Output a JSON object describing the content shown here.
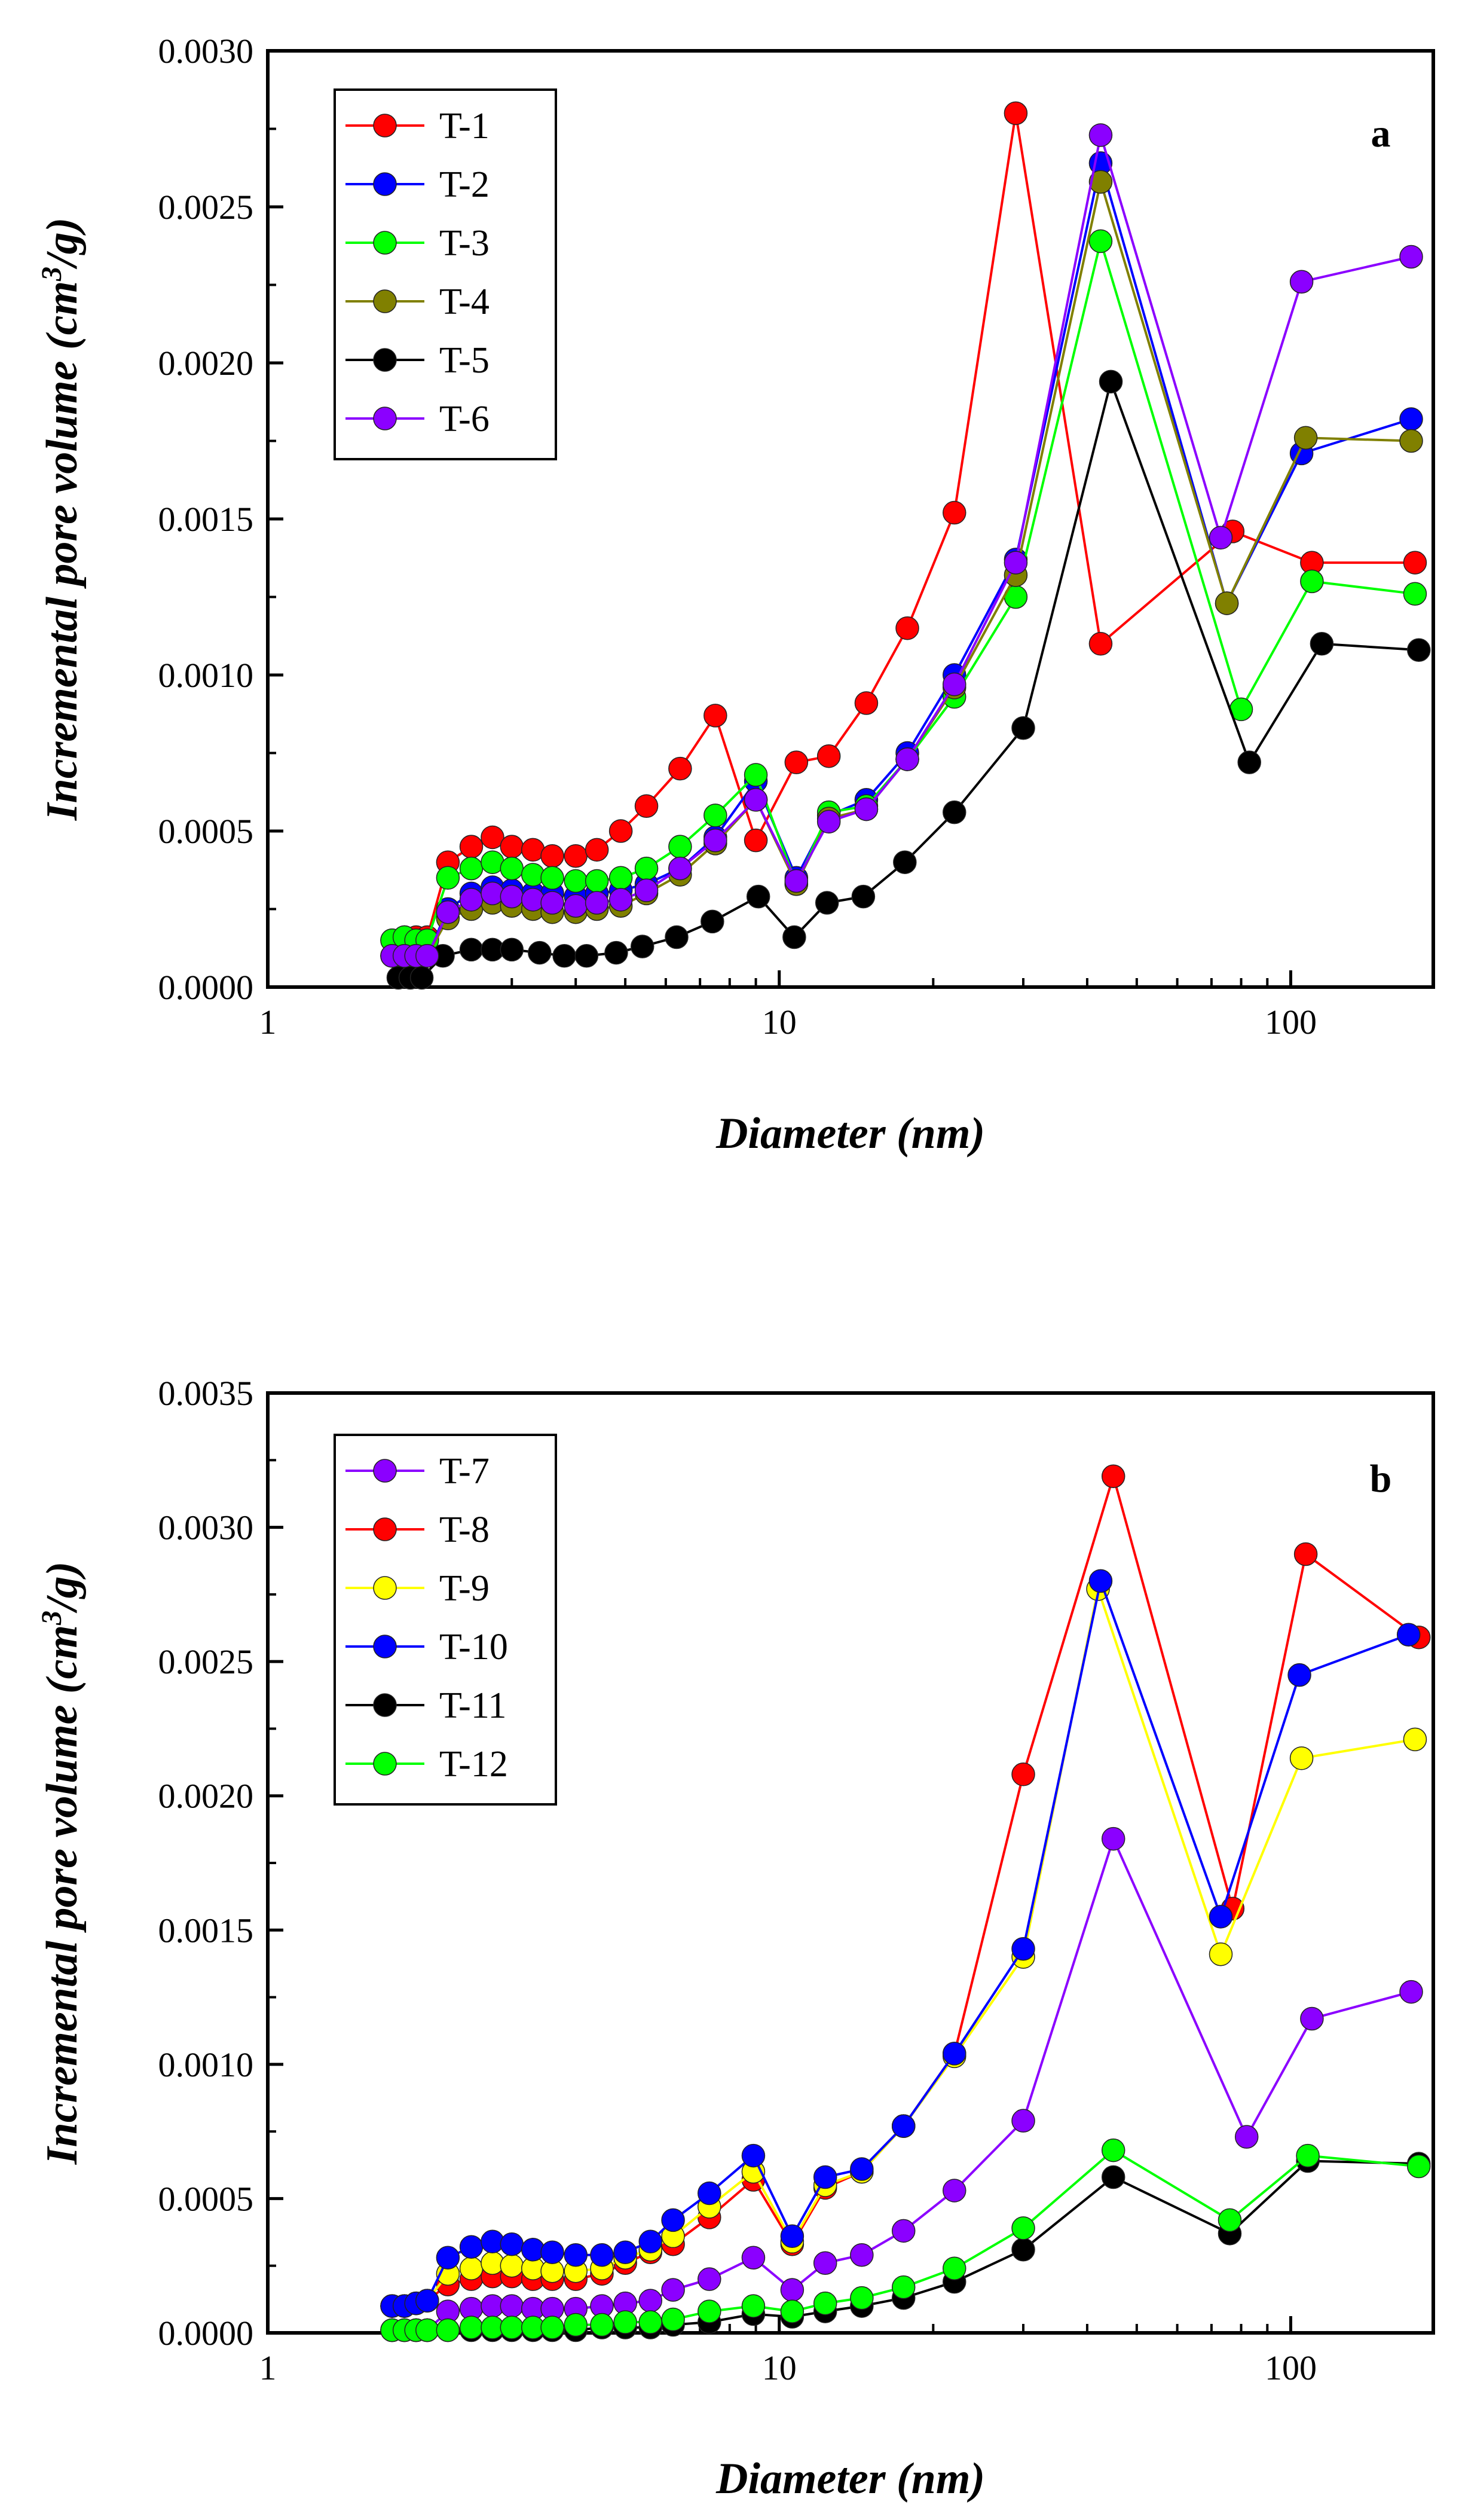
{
  "chart_data": [
    {
      "type": "line",
      "panel_label": "a",
      "xlabel": "Diameter (nm)",
      "ylabel": "Incremental pore volume (cm3/g)",
      "ylabel_parts": {
        "before": "Incremental pore volume (cm",
        "sup": "3",
        "after": "/g)"
      },
      "xscale": "log",
      "xlim": [
        1,
        190
      ],
      "ylim": [
        0,
        0.003
      ],
      "x_ticks": [
        1,
        10,
        100
      ],
      "x_tick_labels": [
        "1",
        "10",
        "100"
      ],
      "y_ticks": [
        0,
        0.0005,
        0.001,
        0.0015,
        0.002,
        0.0025,
        0.003
      ],
      "y_tick_labels": [
        "0.0000",
        "0.0005",
        "0.0010",
        "0.0015",
        "0.0020",
        "0.0025",
        "0.0030"
      ],
      "legend_position": "top-left",
      "series": [
        {
          "name": "T-1",
          "color": "#ff0000",
          "x": [
            1.75,
            1.85,
            1.95,
            2.05,
            2.25,
            2.5,
            2.75,
            3.0,
            3.3,
            3.6,
            4.0,
            4.4,
            4.9,
            5.5,
            6.4,
            7.5,
            9.0,
            10.8,
            12.5,
            14.8,
            17.8,
            22.0,
            29.0,
            42.5,
            77.0,
            110.0,
            175.0
          ],
          "y": [
            0.00015,
            0.00016,
            0.00016,
            0.00016,
            0.0004,
            0.00045,
            0.00048,
            0.00045,
            0.00044,
            0.00042,
            0.00042,
            0.00044,
            0.0005,
            0.00058,
            0.0007,
            0.00087,
            0.00047,
            0.00072,
            0.00074,
            0.00091,
            0.00115,
            0.00152,
            0.0028,
            0.0011,
            0.00146,
            0.00136,
            0.00136
          ]
        },
        {
          "name": "T-2",
          "color": "#0000ff",
          "x": [
            1.75,
            1.85,
            1.95,
            2.05,
            2.25,
            2.5,
            2.75,
            3.0,
            3.3,
            3.6,
            4.0,
            4.4,
            4.9,
            5.5,
            6.4,
            7.5,
            9.0,
            10.8,
            12.5,
            14.8,
            17.8,
            22.0,
            29.0,
            42.5,
            75.0,
            105.0,
            172.0
          ],
          "y": [
            0.0001,
            0.0001,
            0.0001,
            0.0001,
            0.00025,
            0.0003,
            0.00032,
            0.00031,
            0.0003,
            0.0003,
            0.00029,
            0.0003,
            0.00031,
            0.00033,
            0.00038,
            0.00048,
            0.00066,
            0.00035,
            0.00055,
            0.0006,
            0.00075,
            0.001,
            0.00137,
            0.00264,
            0.00123,
            0.00171,
            0.00182
          ]
        },
        {
          "name": "T-3",
          "color": "#00ff00",
          "x": [
            1.75,
            1.85,
            1.95,
            2.05,
            2.25,
            2.5,
            2.75,
            3.0,
            3.3,
            3.6,
            4.0,
            4.4,
            4.9,
            5.5,
            6.4,
            7.5,
            9.0,
            10.8,
            12.5,
            14.8,
            17.8,
            22.0,
            29.0,
            42.5,
            80.0,
            110.0,
            175.0
          ],
          "y": [
            0.00015,
            0.00016,
            0.00015,
            0.00015,
            0.00035,
            0.00038,
            0.0004,
            0.00038,
            0.00036,
            0.00035,
            0.00034,
            0.00034,
            0.00035,
            0.00038,
            0.00045,
            0.00055,
            0.00068,
            0.00033,
            0.00056,
            0.00058,
            0.00073,
            0.00093,
            0.00125,
            0.00239,
            0.00089,
            0.0013,
            0.00126
          ]
        },
        {
          "name": "T-4",
          "color": "#808000",
          "x": [
            1.75,
            1.85,
            1.95,
            2.05,
            2.25,
            2.5,
            2.75,
            3.0,
            3.3,
            3.6,
            4.0,
            4.4,
            4.9,
            5.5,
            6.4,
            7.5,
            9.0,
            10.8,
            12.5,
            14.8,
            17.8,
            22.0,
            29.0,
            42.5,
            75.0,
            107.0,
            172.0
          ],
          "y": [
            0.0001,
            0.0001,
            0.0001,
            0.0001,
            0.00022,
            0.00025,
            0.00027,
            0.00026,
            0.00025,
            0.00024,
            0.00024,
            0.00025,
            0.00026,
            0.0003,
            0.00036,
            0.00046,
            0.0006,
            0.00033,
            0.00054,
            0.00057,
            0.00073,
            0.00096,
            0.00132,
            0.00258,
            0.00123,
            0.00176,
            0.00175
          ]
        },
        {
          "name": "T-5",
          "color": "#000000",
          "x": [
            1.8,
            1.9,
            2.0,
            2.2,
            2.5,
            2.75,
            3.0,
            3.4,
            3.8,
            4.2,
            4.8,
            5.4,
            6.3,
            7.4,
            9.1,
            10.7,
            12.4,
            14.6,
            17.6,
            22.0,
            30.0,
            44.5,
            83.0,
            115.0,
            178.0
          ],
          "y": [
            3e-05,
            3e-05,
            3e-05,
            0.0001,
            0.00012,
            0.00012,
            0.00012,
            0.00011,
            0.0001,
            0.0001,
            0.00011,
            0.00013,
            0.00016,
            0.00021,
            0.00029,
            0.00016,
            0.00027,
            0.00029,
            0.0004,
            0.00056,
            0.00083,
            0.00194,
            0.00072,
            0.0011,
            0.00108
          ]
        },
        {
          "name": "T-6",
          "color": "#8b00ff",
          "x": [
            1.75,
            1.85,
            1.95,
            2.05,
            2.25,
            2.5,
            2.75,
            3.0,
            3.3,
            3.6,
            4.0,
            4.4,
            4.9,
            5.5,
            6.4,
            7.5,
            9.0,
            10.8,
            12.5,
            14.8,
            17.8,
            22.0,
            29.0,
            42.5,
            73.0,
            105.0,
            172.0
          ],
          "y": [
            0.0001,
            0.0001,
            0.0001,
            0.0001,
            0.00024,
            0.00028,
            0.0003,
            0.00029,
            0.00028,
            0.00027,
            0.00026,
            0.00027,
            0.00028,
            0.00031,
            0.00038,
            0.00047,
            0.0006,
            0.00034,
            0.00053,
            0.00057,
            0.00073,
            0.00097,
            0.00136,
            0.00273,
            0.00144,
            0.00226,
            0.00234
          ]
        }
      ]
    },
    {
      "type": "line",
      "panel_label": "b",
      "xlabel": "Diameter (nm)",
      "ylabel": "Incremental pore volume (cm3/g)",
      "ylabel_parts": {
        "before": "Incremental pore volume (cm",
        "sup": "3",
        "after": "/g)"
      },
      "xscale": "log",
      "xlim": [
        1,
        190
      ],
      "ylim": [
        0,
        0.0035
      ],
      "x_ticks": [
        1,
        10,
        100
      ],
      "x_tick_labels": [
        "1",
        "10",
        "100"
      ],
      "y_ticks": [
        0,
        0.0005,
        0.001,
        0.0015,
        0.002,
        0.0025,
        0.003,
        0.0035
      ],
      "y_tick_labels": [
        "0.0000",
        "0.0005",
        "0.0010",
        "0.0015",
        "0.0020",
        "0.0025",
        "0.0030",
        "0.0035"
      ],
      "legend_position": "top-left",
      "series": [
        {
          "name": "T-7",
          "color": "#8b00ff",
          "x": [
            1.75,
            1.85,
            1.95,
            2.05,
            2.25,
            2.5,
            2.75,
            3.0,
            3.3,
            3.6,
            4.0,
            4.5,
            5.0,
            5.6,
            6.2,
            7.3,
            8.9,
            10.6,
            12.3,
            14.5,
            17.5,
            22.0,
            30.0,
            45.0,
            82.0,
            110.0,
            172.0
          ],
          "y": [
            1e-05,
            1e-05,
            1e-05,
            1e-05,
            8e-05,
            9e-05,
            0.0001,
            0.0001,
            9e-05,
            9e-05,
            9e-05,
            0.0001,
            0.00011,
            0.00012,
            0.00016,
            0.0002,
            0.00028,
            0.00016,
            0.00026,
            0.00029,
            0.00038,
            0.00053,
            0.00079,
            0.00184,
            0.00073,
            0.00117,
            0.00127
          ]
        },
        {
          "name": "T-8",
          "color": "#ff0000",
          "x": [
            1.75,
            1.85,
            1.95,
            2.05,
            2.25,
            2.5,
            2.75,
            3.0,
            3.3,
            3.6,
            4.0,
            4.5,
            5.0,
            5.6,
            6.2,
            7.3,
            8.9,
            10.6,
            12.3,
            14.5,
            17.5,
            22.0,
            30.0,
            45.0,
            77.0,
            107.0,
            178.0
          ],
          "y": [
            0.0001,
            0.0001,
            0.00011,
            0.00012,
            0.00018,
            0.0002,
            0.00021,
            0.00021,
            0.0002,
            0.0002,
            0.0002,
            0.00022,
            0.00026,
            0.0003,
            0.00033,
            0.00043,
            0.00057,
            0.00033,
            0.00054,
            0.0006,
            0.00077,
            0.00104,
            0.00208,
            0.00319,
            0.00158,
            0.0029,
            0.00259
          ]
        },
        {
          "name": "T-9",
          "color": "#ffff00",
          "x": [
            1.75,
            1.85,
            1.95,
            2.05,
            2.25,
            2.5,
            2.75,
            3.0,
            3.3,
            3.6,
            4.0,
            4.5,
            5.0,
            5.6,
            6.2,
            7.3,
            8.9,
            10.6,
            12.3,
            14.5,
            17.5,
            22.0,
            30.0,
            42.0,
            73.0,
            105.0,
            175.0
          ],
          "y": [
            0.0001,
            0.0001,
            0.00011,
            0.00012,
            0.00022,
            0.00024,
            0.00026,
            0.00025,
            0.00024,
            0.00023,
            0.00023,
            0.00024,
            0.00028,
            0.00031,
            0.00036,
            0.00047,
            0.0006,
            0.00034,
            0.00055,
            0.0006,
            0.00077,
            0.00103,
            0.0014,
            0.00277,
            0.00141,
            0.00214,
            0.00221
          ]
        },
        {
          "name": "T-10",
          "color": "#0000ff",
          "x": [
            1.75,
            1.85,
            1.95,
            2.05,
            2.25,
            2.5,
            2.75,
            3.0,
            3.3,
            3.6,
            4.0,
            4.5,
            5.0,
            5.6,
            6.2,
            7.3,
            8.9,
            10.6,
            12.3,
            14.5,
            17.5,
            22.0,
            30.0,
            42.5,
            73.0,
            104.0,
            170.0
          ],
          "y": [
            0.0001,
            0.0001,
            0.00011,
            0.00012,
            0.00028,
            0.00032,
            0.00034,
            0.00033,
            0.00031,
            0.0003,
            0.00029,
            0.00029,
            0.0003,
            0.00034,
            0.00042,
            0.00052,
            0.00066,
            0.00036,
            0.00058,
            0.00061,
            0.00077,
            0.00104,
            0.00143,
            0.0028,
            0.00155,
            0.00245,
            0.0026
          ]
        },
        {
          "name": "T-11",
          "color": "#000000",
          "x": [
            1.75,
            1.85,
            1.95,
            2.05,
            2.25,
            2.5,
            2.75,
            3.0,
            3.3,
            3.6,
            4.0,
            4.5,
            5.0,
            5.6,
            6.2,
            7.3,
            8.9,
            10.6,
            12.3,
            14.5,
            17.5,
            22.0,
            30.0,
            45.0,
            76.0,
            108.0,
            178.0
          ],
          "y": [
            1e-05,
            1e-05,
            1e-05,
            1e-05,
            1e-05,
            1e-05,
            1e-05,
            1e-05,
            1e-05,
            1e-05,
            1e-05,
            2e-05,
            2e-05,
            2e-05,
            3e-05,
            4e-05,
            7e-05,
            6e-05,
            8e-05,
            0.0001,
            0.00013,
            0.00019,
            0.00031,
            0.00058,
            0.00037,
            0.00064,
            0.00063
          ]
        },
        {
          "name": "T-12",
          "color": "#00ff00",
          "x": [
            1.75,
            1.85,
            1.95,
            2.05,
            2.25,
            2.5,
            2.75,
            3.0,
            3.3,
            3.6,
            4.0,
            4.5,
            5.0,
            5.6,
            6.2,
            7.3,
            8.9,
            10.6,
            12.3,
            14.5,
            17.5,
            22.0,
            30.0,
            45.0,
            76.0,
            108.0,
            178.0
          ],
          "y": [
            1e-05,
            1e-05,
            1e-05,
            1e-05,
            1e-05,
            2e-05,
            2e-05,
            2e-05,
            2e-05,
            2e-05,
            3e-05,
            3e-05,
            4e-05,
            4e-05,
            5e-05,
            8e-05,
            0.0001,
            8e-05,
            0.00011,
            0.00013,
            0.00017,
            0.00024,
            0.00039,
            0.00068,
            0.00042,
            0.00066,
            0.00062
          ]
        }
      ]
    }
  ]
}
